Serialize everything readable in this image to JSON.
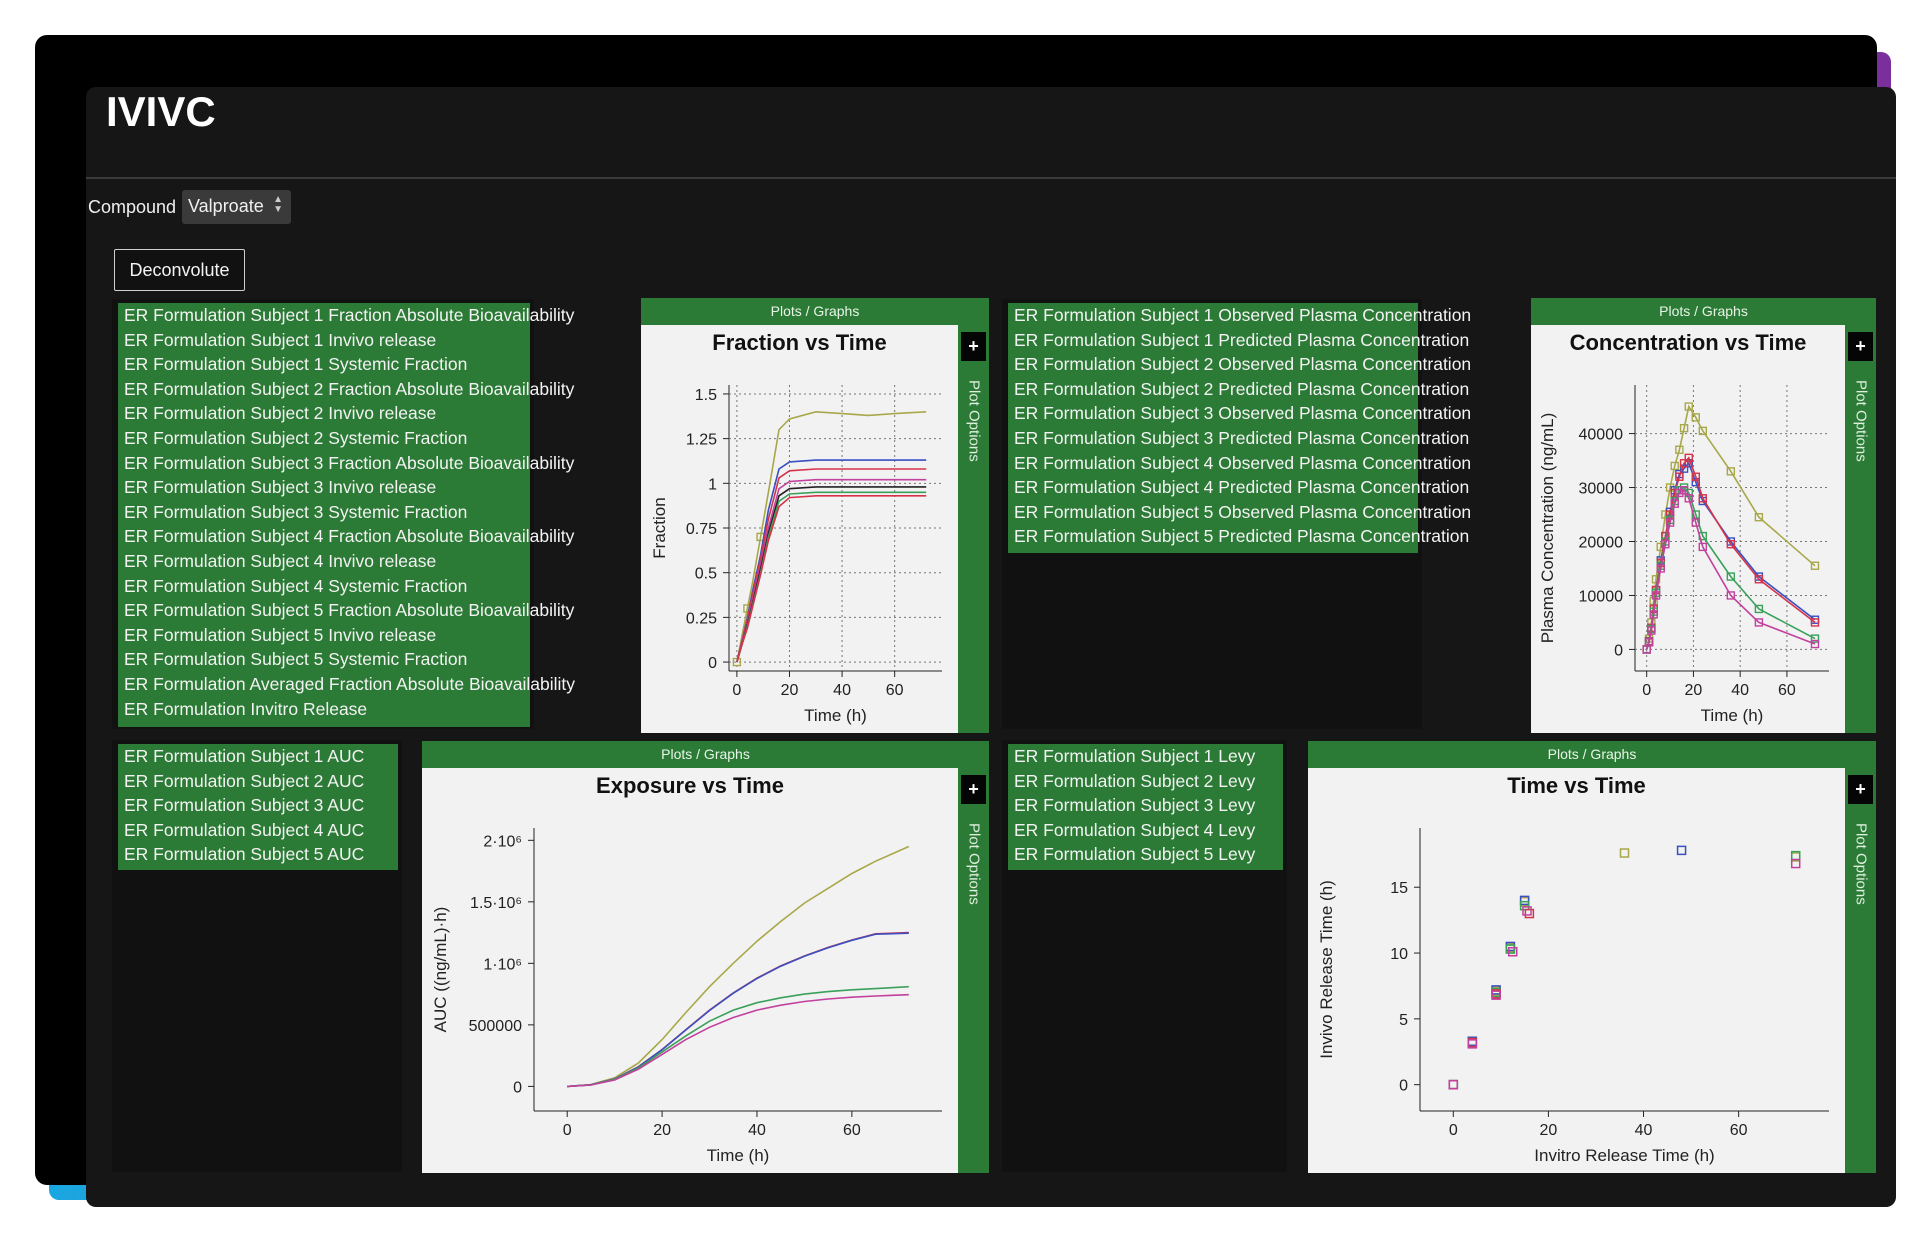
{
  "app": {
    "title": "IVIVC"
  },
  "controls": {
    "compound_label": "Compound",
    "compound_value": "Valproate",
    "deconvolute_label": "Deconvolute"
  },
  "lists": {
    "fraction": [
      "ER Formulation Subject 1 Fraction Absolute Bioavailability",
      "ER Formulation Subject 1 Invivo release",
      "ER Formulation Subject 1 Systemic Fraction",
      "ER Formulation Subject 2 Fraction Absolute Bioavailability",
      "ER Formulation Subject 2 Invivo release",
      "ER Formulation Subject 2 Systemic Fraction",
      "ER Formulation Subject 3 Fraction Absolute Bioavailability",
      "ER Formulation Subject 3 Invivo release",
      "ER Formulation Subject 3 Systemic Fraction",
      "ER Formulation Subject 4 Fraction Absolute Bioavailability",
      "ER Formulation Subject 4 Invivo release",
      "ER Formulation Subject 4 Systemic Fraction",
      "ER Formulation Subject 5 Fraction Absolute Bioavailability",
      "ER Formulation Subject 5 Invivo release",
      "ER Formulation Subject 5 Systemic Fraction",
      "ER Formulation Averaged Fraction Absolute Bioavailability",
      "ER Formulation Invitro Release"
    ],
    "concentration": [
      "ER Formulation Subject 1 Observed Plasma Concentration",
      "ER Formulation Subject 1 Predicted Plasma Concentration",
      "ER Formulation Subject 2 Observed Plasma Concentration",
      "ER Formulation Subject 2 Predicted Plasma Concentration",
      "ER Formulation Subject 3 Observed Plasma Concentration",
      "ER Formulation Subject 3 Predicted Plasma Concentration",
      "ER Formulation Subject 4 Observed Plasma Concentration",
      "ER Formulation Subject 4 Predicted Plasma Concentration",
      "ER Formulation Subject 5 Observed Plasma Concentration",
      "ER Formulation Subject 5 Predicted Plasma Concentration"
    ],
    "auc": [
      "ER Formulation Subject 1 AUC",
      "ER Formulation Subject 2 AUC",
      "ER Formulation Subject 3 AUC",
      "ER Formulation Subject 4 AUC",
      "ER Formulation Subject 5 AUC"
    ],
    "levy": [
      "ER Formulation Subject 1 Levy",
      "ER Formulation Subject 2 Levy",
      "ER Formulation Subject 3 Levy",
      "ER Formulation Subject 4 Levy",
      "ER Formulation Subject 5 Levy"
    ]
  },
  "panels": {
    "header_label": "Plots / Graphs",
    "plus_label": "+",
    "side_label": "Plot Options"
  },
  "colors": {
    "olive": "#a8a84a",
    "blue": "#3a4fc0",
    "red": "#d6334a",
    "green": "#3aa05a",
    "magenta": "#c2409e",
    "black": "#222222",
    "panel_green": "#2b7a35"
  },
  "chart_data": [
    {
      "id": "fraction",
      "type": "line",
      "title": "Fraction vs Time",
      "xlabel": "Time (h)",
      "ylabel": "Fraction",
      "xlim": [
        -3,
        78
      ],
      "ylim": [
        -0.05,
        1.55
      ],
      "xticks": [
        0,
        20,
        40,
        60
      ],
      "yticks": [
        0,
        0.25,
        0.5,
        0.75,
        1,
        1.25,
        1.5
      ],
      "ytick_labels": [
        "0",
        "0.25",
        "0.5",
        "0.75",
        "1",
        "1.25",
        "1.5"
      ],
      "grid": true,
      "series": [
        {
          "color": "olive",
          "x": [
            0,
            2,
            4,
            6,
            9,
            12,
            16,
            20,
            30,
            40,
            50,
            60,
            72
          ],
          "y": [
            0,
            0.15,
            0.3,
            0.45,
            0.7,
            0.95,
            1.3,
            1.36,
            1.4,
            1.39,
            1.38,
            1.39,
            1.4
          ],
          "markers": [
            0,
            2,
            4
          ]
        },
        {
          "color": "blue",
          "x": [
            0,
            2,
            4,
            6,
            9,
            12,
            16,
            20,
            30,
            40,
            50,
            60,
            72
          ],
          "y": [
            0,
            0.12,
            0.25,
            0.4,
            0.6,
            0.85,
            1.08,
            1.12,
            1.13,
            1.13,
            1.13,
            1.13,
            1.13
          ]
        },
        {
          "color": "red",
          "x": [
            0,
            2,
            4,
            6,
            9,
            12,
            16,
            20,
            30,
            40,
            50,
            60,
            72
          ],
          "y": [
            0,
            0.12,
            0.24,
            0.38,
            0.58,
            0.8,
            1.03,
            1.07,
            1.08,
            1.08,
            1.08,
            1.08,
            1.08
          ]
        },
        {
          "color": "magenta",
          "x": [
            0,
            2,
            4,
            6,
            9,
            12,
            16,
            20,
            30,
            40,
            50,
            60,
            72
          ],
          "y": [
            0,
            0.11,
            0.22,
            0.35,
            0.55,
            0.75,
            0.97,
            1.01,
            1.02,
            1.02,
            1.02,
            1.02,
            1.02
          ]
        },
        {
          "color": "black",
          "x": [
            0,
            2,
            4,
            6,
            9,
            12,
            16,
            20,
            30,
            40,
            50,
            60,
            72
          ],
          "y": [
            0,
            0.1,
            0.21,
            0.33,
            0.52,
            0.72,
            0.93,
            0.97,
            0.98,
            0.98,
            0.98,
            0.98,
            0.98
          ]
        },
        {
          "color": "green",
          "x": [
            0,
            2,
            4,
            6,
            9,
            12,
            16,
            20,
            30,
            40,
            50,
            60,
            72
          ],
          "y": [
            0,
            0.1,
            0.2,
            0.32,
            0.5,
            0.7,
            0.9,
            0.94,
            0.95,
            0.95,
            0.95,
            0.95,
            0.95
          ]
        },
        {
          "color": "red",
          "x": [
            0,
            2,
            4,
            6,
            9,
            12,
            16,
            20,
            30,
            40,
            50,
            60,
            72
          ],
          "y": [
            0,
            0.1,
            0.19,
            0.31,
            0.49,
            0.68,
            0.87,
            0.92,
            0.93,
            0.93,
            0.93,
            0.93,
            0.93
          ]
        }
      ]
    },
    {
      "id": "concentration",
      "type": "line",
      "title": "Concentration vs Time",
      "xlabel": "Time (h)",
      "ylabel": "Plasma Concentration (ng/mL)",
      "xlim": [
        -5,
        78
      ],
      "ylim": [
        -4000,
        49000
      ],
      "xticks": [
        0,
        20,
        40,
        60
      ],
      "yticks": [
        0,
        10000,
        20000,
        30000,
        40000
      ],
      "grid": true,
      "series": [
        {
          "color": "olive",
          "x": [
            0,
            1,
            2,
            3,
            4,
            6,
            8,
            10,
            12,
            14,
            16,
            18,
            21,
            24,
            36,
            48,
            72
          ],
          "y": [
            0,
            2000,
            5000,
            9000,
            13000,
            19000,
            25000,
            30000,
            34000,
            37000,
            41000,
            45000,
            43000,
            40500,
            33000,
            24500,
            15500
          ]
        },
        {
          "color": "blue",
          "x": [
            0,
            1,
            2,
            3,
            4,
            6,
            8,
            10,
            12,
            14,
            16,
            18,
            21,
            24,
            36,
            48,
            72
          ],
          "y": [
            0,
            1500,
            4000,
            7500,
            11000,
            16500,
            21000,
            25500,
            29500,
            32500,
            33500,
            34500,
            31000,
            27500,
            20000,
            13500,
            5500
          ]
        },
        {
          "color": "red",
          "x": [
            0,
            1,
            2,
            3,
            4,
            6,
            8,
            10,
            12,
            14,
            16,
            18,
            21,
            24,
            36,
            48,
            72
          ],
          "y": [
            0,
            1500,
            4000,
            7500,
            11000,
            16000,
            21000,
            25000,
            29000,
            32000,
            34500,
            35500,
            32000,
            28000,
            19500,
            13000,
            5000
          ]
        },
        {
          "color": "green",
          "x": [
            0,
            1,
            2,
            3,
            4,
            6,
            8,
            10,
            12,
            14,
            16,
            18,
            21,
            24,
            36,
            48,
            72
          ],
          "y": [
            0,
            1400,
            3800,
            7000,
            10500,
            15500,
            20000,
            24000,
            27500,
            29500,
            30000,
            29000,
            25000,
            21000,
            13500,
            7500,
            2000
          ]
        },
        {
          "color": "magenta",
          "x": [
            0,
            1,
            2,
            3,
            4,
            6,
            8,
            10,
            12,
            14,
            16,
            18,
            21,
            24,
            36,
            48,
            72
          ],
          "y": [
            0,
            1300,
            3500,
            6500,
            10000,
            15000,
            19500,
            23500,
            27000,
            29000,
            29500,
            28000,
            23500,
            19000,
            10000,
            5000,
            1000
          ]
        }
      ]
    },
    {
      "id": "exposure",
      "type": "line",
      "title": "Exposure vs Time",
      "xlabel": "Time (h)",
      "ylabel": "AUC ((ng/mL)·h)",
      "xlim": [
        -7,
        79
      ],
      "ylim": [
        -200000,
        2100000
      ],
      "xticks": [
        0,
        20,
        40,
        60
      ],
      "yticks": [
        0,
        500000,
        1000000,
        1500000,
        2000000
      ],
      "ytick_labels": [
        "0",
        "500000",
        "1·10⁶",
        "1.5·10⁶",
        "2·10⁶"
      ],
      "grid": false,
      "series": [
        {
          "color": "olive",
          "x": [
            0,
            5,
            10,
            15,
            20,
            25,
            30,
            35,
            40,
            45,
            50,
            55,
            60,
            65,
            72
          ],
          "y": [
            0,
            15000,
            70000,
            190000,
            380000,
            600000,
            810000,
            1000000,
            1180000,
            1340000,
            1490000,
            1610000,
            1730000,
            1830000,
            1950000
          ]
        },
        {
          "color": "red",
          "x": [
            0,
            5,
            10,
            15,
            20,
            25,
            30,
            35,
            40,
            45,
            50,
            55,
            60,
            65,
            72
          ],
          "y": [
            0,
            13000,
            60000,
            160000,
            300000,
            460000,
            620000,
            760000,
            880000,
            980000,
            1060000,
            1130000,
            1190000,
            1240000,
            1250000
          ]
        },
        {
          "color": "blue",
          "x": [
            0,
            5,
            10,
            15,
            20,
            25,
            30,
            35,
            40,
            45,
            50,
            55,
            60,
            65,
            72
          ],
          "y": [
            0,
            13000,
            60000,
            158000,
            298000,
            458000,
            617000,
            757000,
            877000,
            977000,
            1057000,
            1127000,
            1187000,
            1237000,
            1245000
          ]
        },
        {
          "color": "green",
          "x": [
            0,
            5,
            10,
            15,
            20,
            25,
            30,
            35,
            40,
            45,
            50,
            55,
            60,
            65,
            72
          ],
          "y": [
            0,
            12000,
            57000,
            150000,
            280000,
            410000,
            530000,
            620000,
            680000,
            720000,
            750000,
            770000,
            785000,
            795000,
            810000
          ]
        },
        {
          "color": "magenta",
          "x": [
            0,
            5,
            10,
            15,
            20,
            25,
            30,
            35,
            40,
            45,
            50,
            55,
            60,
            65,
            72
          ],
          "y": [
            0,
            11000,
            52000,
            140000,
            260000,
            380000,
            480000,
            560000,
            620000,
            660000,
            690000,
            710000,
            725000,
            735000,
            745000
          ]
        }
      ]
    },
    {
      "id": "levy",
      "type": "scatter",
      "title": "Time vs Time",
      "xlabel": "Invitro Release Time (h)",
      "ylabel": "Invivo Release Time (h)",
      "xlim": [
        -7,
        79
      ],
      "ylim": [
        -2,
        19.5
      ],
      "xticks": [
        0,
        20,
        40,
        60
      ],
      "yticks": [
        0,
        5,
        10,
        15
      ],
      "grid": false,
      "series": [
        {
          "color": "olive",
          "x": [
            0,
            4,
            9,
            12,
            15,
            36,
            72
          ],
          "y": [
            0,
            3.3,
            7.1,
            10.4,
            13.9,
            17.6,
            17.3
          ]
        },
        {
          "color": "blue",
          "x": [
            0,
            4,
            9,
            12,
            15,
            48
          ],
          "y": [
            0,
            3.3,
            7.2,
            10.5,
            14.0,
            17.8
          ]
        },
        {
          "color": "green",
          "x": [
            0,
            4,
            9,
            12,
            15,
            72
          ],
          "y": [
            0,
            3.2,
            7.0,
            10.3,
            13.6,
            17.4
          ]
        },
        {
          "color": "red",
          "x": [
            0,
            4,
            9,
            12.5,
            16
          ],
          "y": [
            0,
            3.2,
            6.9,
            10.1,
            13.0
          ]
        },
        {
          "color": "magenta",
          "x": [
            0,
            4,
            9,
            12.5,
            15.5,
            72
          ],
          "y": [
            0,
            3.1,
            6.8,
            10.1,
            13.2,
            16.8
          ]
        }
      ]
    }
  ]
}
